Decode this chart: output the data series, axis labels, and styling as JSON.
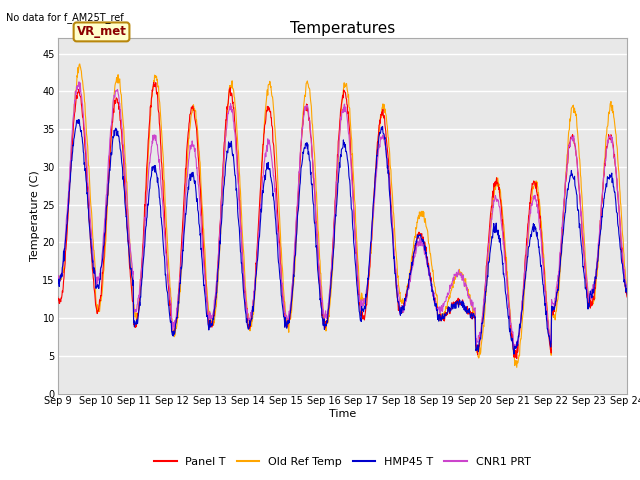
{
  "title": "Temperatures",
  "xlabel": "Time",
  "ylabel": "Temperature (C)",
  "top_left_text": "No data for f_AM25T_ref",
  "annotation_text": "VR_met",
  "ylim": [
    0,
    47
  ],
  "yticks": [
    0,
    5,
    10,
    15,
    20,
    25,
    30,
    35,
    40,
    45
  ],
  "x_tick_labels": [
    "Sep 9",
    "Sep 10",
    "Sep 11",
    "Sep 12",
    "Sep 13",
    "Sep 14",
    "Sep 15",
    "Sep 16",
    "Sep 17",
    "Sep 18",
    "Sep 19",
    "Sep 20",
    "Sep 21",
    "Sep 22",
    "Sep 23",
    "Sep 24"
  ],
  "legend_labels": [
    "Panel T",
    "Old Ref Temp",
    "HMP45 T",
    "CNR1 PRT"
  ],
  "line_colors": [
    "#ff0000",
    "#ffa500",
    "#0000cd",
    "#cc44cc"
  ],
  "figure_bg": "#ffffff",
  "plot_bg_color": "#e8e8e8",
  "grid_color": "#ffffff",
  "num_days": 15,
  "panel_mins": [
    12,
    11,
    9,
    8,
    9,
    9,
    9,
    9,
    10,
    11,
    10,
    6,
    5,
    11,
    12
  ],
  "panel_maxs": [
    40,
    39,
    41,
    38,
    40,
    38,
    38,
    40,
    37,
    21,
    12,
    28,
    28,
    34,
    34
  ],
  "old_ref_mins": [
    15,
    11,
    10,
    8,
    9,
    9,
    9,
    9,
    12,
    12,
    10,
    5,
    4,
    10,
    12
  ],
  "old_ref_maxs": [
    43,
    42,
    42,
    38,
    41,
    41,
    41,
    41,
    38,
    24,
    16,
    28,
    28,
    38,
    38
  ],
  "hmp_mins": [
    15,
    14,
    9,
    8,
    9,
    9,
    9,
    9,
    11,
    11,
    10,
    6,
    6,
    11,
    13
  ],
  "hmp_maxs": [
    36,
    35,
    30,
    29,
    33,
    30,
    33,
    33,
    35,
    21,
    12,
    22,
    22,
    29,
    29
  ],
  "cnr_mins": [
    15,
    15,
    11,
    9,
    10,
    10,
    10,
    10,
    12,
    11,
    11,
    7,
    6,
    12,
    13
  ],
  "cnr_maxs": [
    41,
    40,
    34,
    33,
    38,
    33,
    38,
    38,
    34,
    20,
    16,
    26,
    26,
    34,
    34
  ],
  "title_fontsize": 11,
  "label_fontsize": 8,
  "tick_fontsize": 7,
  "legend_fontsize": 8
}
